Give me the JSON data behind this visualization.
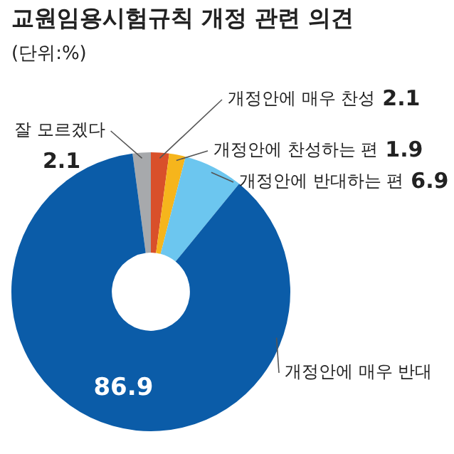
{
  "chart_data": {
    "type": "donut",
    "title": "교원임용시험규칙 개정 관련 의견",
    "subtitle": "(단위:%)",
    "categories": [
      "잘 모르겠다",
      "개정안에 매우 찬성",
      "개정안에 찬성하는 편",
      "개정안에 반대하는 편",
      "개정안에 매우 반대"
    ],
    "values": [
      2.1,
      2.1,
      1.9,
      6.9,
      86.9
    ],
    "colors": [
      "#a7a9ac",
      "#d9502a",
      "#f6b51c",
      "#6cc6ef",
      "#0b5ca8"
    ],
    "data_labels": true
  }
}
